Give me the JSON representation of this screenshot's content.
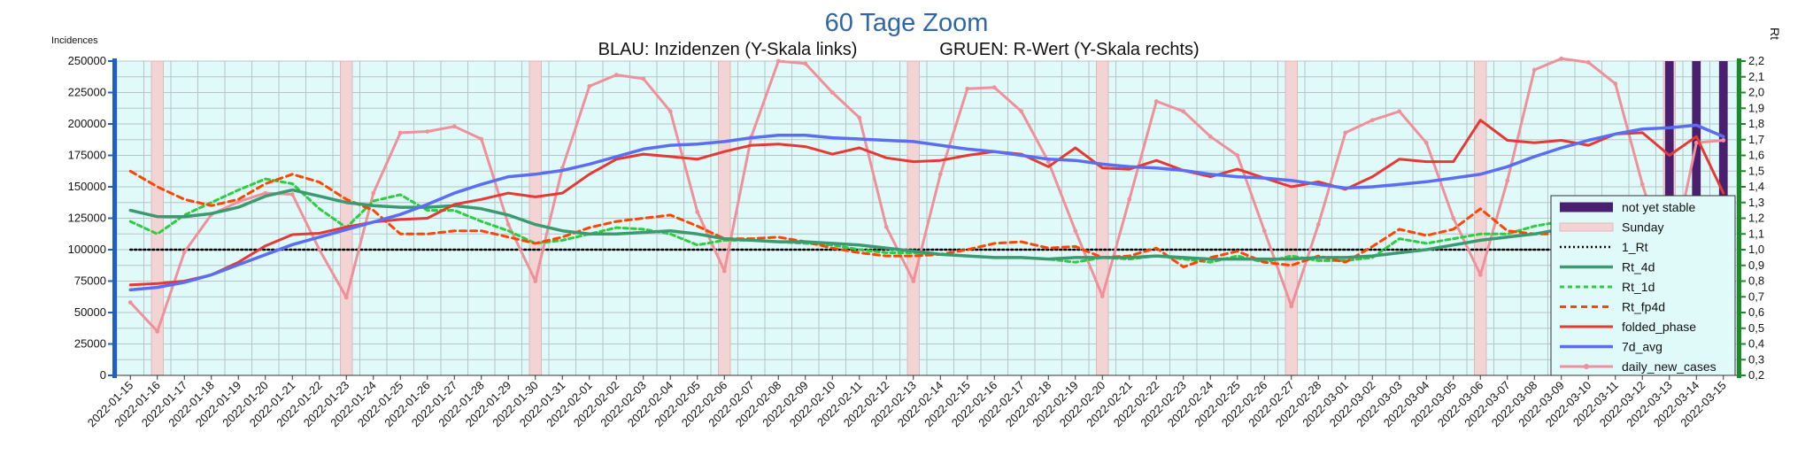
{
  "chart_data": {
    "type": "line",
    "title": "60 Tage Zoom",
    "subtitle_left": "BLAU: Inzidenzen (Y-Skala links)",
    "subtitle_right": "GRUEN: R-Wert (Y-Skala rechts)",
    "ylabel_left": "Incidences",
    "ylabel_right": "Rt",
    "ylim_left": [
      0,
      250000
    ],
    "ylim_right": [
      0.2,
      2.2
    ],
    "yticks_left": [
      "0",
      "25000",
      "50000",
      "75000",
      "100000",
      "125000",
      "150000",
      "175000",
      "200000",
      "225000",
      "250000"
    ],
    "yticks_right": [
      "0,2",
      "0,3",
      "0,4",
      "0,5",
      "0,6",
      "0,7",
      "0,8",
      "0,9",
      "1,0",
      "1,1",
      "1,2",
      "1,3",
      "1,4",
      "1,5",
      "1,6",
      "1,7",
      "1,8",
      "1,9",
      "2,0",
      "2,1",
      "2,2"
    ],
    "grid": true,
    "legend_position": "right",
    "x": [
      "2022-01-15",
      "2022-01-16",
      "2022-01-17",
      "2022-01-18",
      "2022-01-19",
      "2022-01-20",
      "2022-01-21",
      "2022-01-22",
      "2022-01-23",
      "2022-01-24",
      "2022-01-25",
      "2022-01-26",
      "2022-01-27",
      "2022-01-28",
      "2022-01-29",
      "2022-01-30",
      "2022-01-31",
      "2022-02-01",
      "2022-02-02",
      "2022-02-03",
      "2022-02-04",
      "2022-02-05",
      "2022-02-06",
      "2022-02-07",
      "2022-02-08",
      "2022-02-09",
      "2022-02-10",
      "2022-02-11",
      "2022-02-12",
      "2022-02-13",
      "2022-02-14",
      "2022-02-15",
      "2022-02-16",
      "2022-02-17",
      "2022-02-18",
      "2022-02-19",
      "2022-02-20",
      "2022-02-21",
      "2022-02-22",
      "2022-02-23",
      "2022-02-24",
      "2022-02-25",
      "2022-02-26",
      "2022-02-27",
      "2022-02-28",
      "2022-03-01",
      "2022-03-02",
      "2022-03-03",
      "2022-03-04",
      "2022-03-05",
      "2022-03-06",
      "2022-03-07",
      "2022-03-08",
      "2022-03-09",
      "2022-03-10",
      "2022-03-11",
      "2022-03-12",
      "2022-03-13",
      "2022-03-14",
      "2022-03-15"
    ],
    "sunday_dates": [
      "2022-01-16",
      "2022-01-23",
      "2022-01-30",
      "2022-02-06",
      "2022-02-13",
      "2022-02-20",
      "2022-02-27",
      "2022-03-06",
      "2022-03-13"
    ],
    "not_yet_stable_dates": [
      "2022-03-13",
      "2022-03-14",
      "2022-03-15"
    ],
    "series": [
      {
        "name": "not yet stable",
        "kind": "band",
        "color": "#4b1f6f"
      },
      {
        "name": "Sunday",
        "kind": "band",
        "color": "#f2d4d4"
      },
      {
        "name": "1_Rt",
        "axis": "right",
        "color": "#000000",
        "dash": "2,3",
        "width": 2.5,
        "values": [
          1.0,
          1.0,
          1.0,
          1.0,
          1.0,
          1.0,
          1.0,
          1.0,
          1.0,
          1.0,
          1.0,
          1.0,
          1.0,
          1.0,
          1.0,
          1.0,
          1.0,
          1.0,
          1.0,
          1.0,
          1.0,
          1.0,
          1.0,
          1.0,
          1.0,
          1.0,
          1.0,
          1.0,
          1.0,
          1.0,
          1.0,
          1.0,
          1.0,
          1.0,
          1.0,
          1.0,
          1.0,
          1.0,
          1.0,
          1.0,
          1.0,
          1.0,
          1.0,
          1.0,
          1.0,
          1.0,
          1.0,
          1.0,
          1.0,
          1.0,
          1.0,
          1.0,
          1.0,
          1.0,
          1.0,
          1.0,
          1.0,
          1.0,
          1.0,
          1.0
        ]
      },
      {
        "name": "Rt_4d",
        "axis": "right",
        "color": "#3d9970",
        "dash": "",
        "width": 3.5,
        "values": [
          1.25,
          1.21,
          1.21,
          1.23,
          1.27,
          1.34,
          1.38,
          1.34,
          1.3,
          1.28,
          1.27,
          1.27,
          1.28,
          1.26,
          1.22,
          1.16,
          1.12,
          1.1,
          1.1,
          1.11,
          1.12,
          1.1,
          1.07,
          1.06,
          1.05,
          1.05,
          1.04,
          1.03,
          1.01,
          0.99,
          0.97,
          0.96,
          0.95,
          0.95,
          0.94,
          0.95,
          0.95,
          0.95,
          0.96,
          0.95,
          0.94,
          0.94,
          0.94,
          0.94,
          0.95,
          0.95,
          0.96,
          0.98,
          1.0,
          1.03,
          1.06,
          1.08,
          1.1,
          1.13,
          1.15,
          1.16,
          1.15,
          1.12,
          1.09,
          1.0
        ]
      },
      {
        "name": "Rt_1d",
        "axis": "right",
        "color": "#2ecc40",
        "dash": "5,4",
        "width": 3,
        "values": [
          1.18,
          1.1,
          1.22,
          1.3,
          1.38,
          1.45,
          1.42,
          1.26,
          1.14,
          1.31,
          1.35,
          1.25,
          1.25,
          1.18,
          1.12,
          1.04,
          1.06,
          1.1,
          1.14,
          1.13,
          1.1,
          1.03,
          1.06,
          1.06,
          1.05,
          1.04,
          1.03,
          1.0,
          0.98,
          0.98,
          0.97,
          0.96,
          0.95,
          0.95,
          0.94,
          0.92,
          0.95,
          0.94,
          0.96,
          0.94,
          0.92,
          0.96,
          0.92,
          0.96,
          0.93,
          0.93,
          0.95,
          1.07,
          1.04,
          1.07,
          1.1,
          1.1,
          1.15,
          1.18,
          1.17,
          1.16,
          1.14,
          1.08,
          1.06,
          0.87
        ]
      },
      {
        "name": "Rt_fp4d",
        "axis": "right",
        "color": "#ff4500",
        "dash": "7,5",
        "width": 3,
        "values": [
          1.5,
          1.4,
          1.32,
          1.28,
          1.32,
          1.42,
          1.48,
          1.43,
          1.32,
          1.25,
          1.1,
          1.1,
          1.12,
          1.12,
          1.08,
          1.04,
          1.08,
          1.14,
          1.18,
          1.2,
          1.22,
          1.15,
          1.07,
          1.07,
          1.08,
          1.05,
          1.01,
          0.98,
          0.96,
          0.96,
          0.97,
          1.0,
          1.04,
          1.05,
          1.01,
          1.02,
          0.95,
          0.96,
          1.01,
          0.89,
          0.95,
          0.99,
          0.92,
          0.9,
          0.96,
          0.92,
          1.02,
          1.13,
          1.09,
          1.13,
          1.26,
          1.12,
          1.1,
          1.1,
          0.9,
          0.99,
          1.02,
          1.04,
          0.96,
          0.78
        ]
      },
      {
        "name": "folded_phase",
        "axis": "left",
        "color": "#e53935",
        "dash": "",
        "width": 3,
        "values": [
          72000,
          73000,
          75000,
          80000,
          90000,
          103000,
          112000,
          113000,
          118000,
          122000,
          124000,
          125000,
          136000,
          140000,
          145000,
          142000,
          145000,
          160000,
          172000,
          176000,
          174000,
          172000,
          178000,
          183000,
          184000,
          182000,
          176000,
          181000,
          173000,
          170000,
          171000,
          175000,
          178000,
          176000,
          166000,
          181000,
          165000,
          164000,
          171000,
          163000,
          158000,
          164000,
          157000,
          150000,
          154000,
          148000,
          158000,
          172000,
          170000,
          170000,
          203000,
          187000,
          185000,
          187000,
          183000,
          192000,
          193000,
          175000,
          190000,
          145000
        ]
      },
      {
        "name": "7d_avg",
        "axis": "left",
        "color": "#5b6ef2",
        "dash": "",
        "width": 3.5,
        "values": [
          68000,
          70000,
          74000,
          80000,
          88000,
          96000,
          104000,
          110000,
          116000,
          122000,
          128000,
          136000,
          145000,
          152000,
          158000,
          160000,
          163000,
          168000,
          174000,
          180000,
          183000,
          184000,
          186000,
          189000,
          191000,
          191000,
          189000,
          188000,
          187000,
          186000,
          183000,
          180000,
          178000,
          175000,
          172000,
          171000,
          168000,
          166000,
          165000,
          163000,
          160000,
          158000,
          157000,
          155000,
          152000,
          149000,
          150000,
          152000,
          154000,
          157000,
          160000,
          166000,
          174000,
          181000,
          187000,
          192000,
          196000,
          197000,
          199000,
          190000
        ]
      },
      {
        "name": "daily_new_cases",
        "axis": "left",
        "color": "#f0909a",
        "dash": "",
        "width": 3,
        "values": [
          58000,
          35000,
          98000,
          128000,
          138000,
          145000,
          144000,
          100000,
          62000,
          145000,
          193000,
          194000,
          198000,
          188000,
          120000,
          75000,
          165000,
          230000,
          239000,
          236000,
          210000,
          130000,
          83000,
          190000,
          250000,
          248000,
          225000,
          205000,
          118000,
          75000,
          160000,
          228000,
          229000,
          210000,
          170000,
          115000,
          63000,
          140000,
          218000,
          210000,
          190000,
          175000,
          115000,
          55000,
          120000,
          193000,
          203000,
          210000,
          185000,
          125000,
          80000,
          155000,
          243000,
          252000,
          249000,
          232000,
          152000,
          83000,
          185000,
          187000
        ]
      }
    ]
  }
}
